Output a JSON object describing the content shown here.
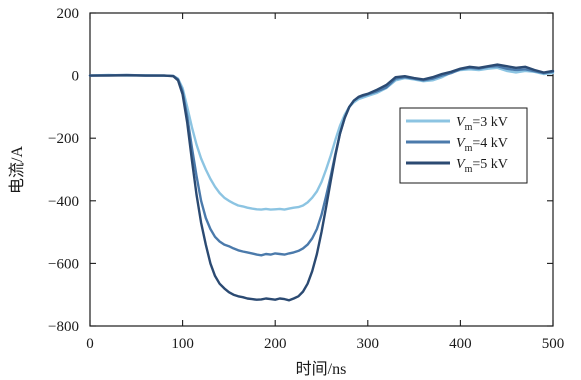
{
  "chart_data": {
    "type": "line",
    "title": "",
    "xlabel": "时间/ns",
    "ylabel": "电流/A",
    "xlim": [
      0,
      500
    ],
    "ylim": [
      -800,
      200
    ],
    "xticks": [
      0,
      100,
      200,
      300,
      400,
      500
    ],
    "yticks": [
      200,
      0,
      -200,
      -400,
      -600,
      -800
    ],
    "grid": false,
    "legend_position": "right",
    "series": [
      {
        "name": "Vm=3 kV",
        "legend": {
          "var": "V",
          "sub": "m",
          "rest": "=3 kV"
        },
        "color": "#8cc4e2",
        "x": [
          0,
          20,
          40,
          60,
          80,
          90,
          95,
          100,
          105,
          110,
          115,
          120,
          125,
          130,
          135,
          140,
          145,
          150,
          155,
          160,
          165,
          170,
          175,
          180,
          185,
          190,
          195,
          200,
          205,
          210,
          215,
          220,
          225,
          230,
          235,
          240,
          245,
          250,
          255,
          260,
          265,
          270,
          275,
          280,
          285,
          290,
          295,
          300,
          310,
          320,
          330,
          340,
          350,
          360,
          370,
          380,
          390,
          400,
          410,
          420,
          430,
          440,
          450,
          460,
          470,
          480,
          490,
          500
        ],
        "y": [
          0,
          2,
          0,
          1,
          0,
          -1,
          -10,
          -40,
          -100,
          -165,
          -220,
          -265,
          -300,
          -330,
          -355,
          -375,
          -390,
          -400,
          -408,
          -415,
          -418,
          -422,
          -425,
          -427,
          -428,
          -426,
          -428,
          -427,
          -426,
          -428,
          -425,
          -422,
          -420,
          -415,
          -405,
          -390,
          -370,
          -340,
          -300,
          -255,
          -205,
          -160,
          -125,
          -100,
          -85,
          -75,
          -70,
          -65,
          -55,
          -40,
          -15,
          -8,
          -12,
          -18,
          -15,
          -5,
          10,
          18,
          20,
          18,
          22,
          25,
          15,
          10,
          15,
          12,
          5,
          8
        ]
      },
      {
        "name": "Vm=4 kV",
        "legend": {
          "var": "V",
          "sub": "m",
          "rest": "=4 kV"
        },
        "color": "#4b7aab",
        "x": [
          0,
          20,
          40,
          60,
          80,
          90,
          95,
          100,
          105,
          110,
          115,
          120,
          125,
          130,
          135,
          140,
          145,
          150,
          155,
          160,
          165,
          170,
          175,
          180,
          185,
          190,
          195,
          200,
          205,
          210,
          215,
          220,
          225,
          230,
          235,
          240,
          245,
          250,
          255,
          260,
          265,
          270,
          275,
          280,
          285,
          290,
          295,
          300,
          310,
          320,
          330,
          340,
          350,
          360,
          370,
          380,
          390,
          400,
          410,
          420,
          430,
          440,
          450,
          460,
          470,
          480,
          490,
          500
        ],
        "y": [
          0,
          1,
          2,
          0,
          0,
          -1,
          -12,
          -50,
          -130,
          -230,
          -320,
          -400,
          -455,
          -490,
          -515,
          -530,
          -540,
          -545,
          -552,
          -558,
          -562,
          -565,
          -568,
          -572,
          -574,
          -570,
          -572,
          -568,
          -570,
          -572,
          -568,
          -565,
          -560,
          -552,
          -540,
          -520,
          -490,
          -445,
          -385,
          -320,
          -250,
          -185,
          -135,
          -100,
          -80,
          -70,
          -65,
          -60,
          -50,
          -38,
          -10,
          -5,
          -10,
          -15,
          -10,
          0,
          8,
          20,
          25,
          22,
          28,
          30,
          22,
          18,
          20,
          14,
          8,
          12
        ]
      },
      {
        "name": "Vm=5 kV",
        "legend": {
          "var": "V",
          "sub": "m",
          "rest": "=5 kV"
        },
        "color": "#2b4a72",
        "x": [
          0,
          20,
          40,
          60,
          80,
          90,
          95,
          100,
          105,
          110,
          115,
          120,
          125,
          130,
          135,
          140,
          145,
          150,
          155,
          160,
          165,
          170,
          175,
          180,
          185,
          190,
          195,
          200,
          205,
          210,
          215,
          220,
          225,
          230,
          235,
          240,
          245,
          250,
          255,
          260,
          265,
          270,
          275,
          280,
          285,
          290,
          295,
          300,
          310,
          320,
          330,
          340,
          350,
          360,
          370,
          380,
          390,
          400,
          410,
          420,
          430,
          440,
          450,
          460,
          470,
          480,
          490,
          500
        ],
        "y": [
          0,
          0,
          1,
          0,
          0,
          -2,
          -15,
          -60,
          -150,
          -270,
          -380,
          -470,
          -540,
          -600,
          -640,
          -665,
          -680,
          -692,
          -700,
          -705,
          -708,
          -712,
          -714,
          -716,
          -715,
          -712,
          -714,
          -716,
          -712,
          -714,
          -718,
          -712,
          -705,
          -690,
          -665,
          -625,
          -570,
          -500,
          -420,
          -335,
          -255,
          -185,
          -135,
          -100,
          -80,
          -68,
          -62,
          -58,
          -45,
          -30,
          -5,
          -2,
          -8,
          -12,
          -5,
          5,
          12,
          22,
          28,
          25,
          30,
          35,
          30,
          25,
          28,
          18,
          10,
          15
        ]
      }
    ]
  }
}
